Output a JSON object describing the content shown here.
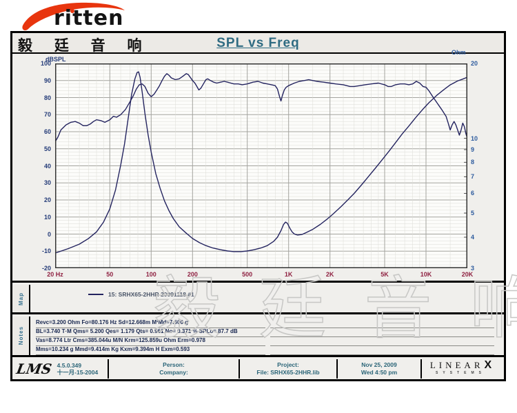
{
  "brand": {
    "logo_text": "ritten",
    "chinese_name": "毅 廷 音 响"
  },
  "title": "SPL vs Freq",
  "watermark": "毅 廷 音 响",
  "lms_plot_logo": "LMS",
  "colors": {
    "brand_red": "#e8350e",
    "title_color": "#2f6b82",
    "curve": "#23235f",
    "x_tick_color": "#8e2040",
    "yleft_color": "#243b78",
    "yright_color": "#2d5b9e",
    "footer_text": "#2b6578"
  },
  "chart_data": {
    "type": "line",
    "title": "SPL vs Freq",
    "grid": true,
    "x_axis": {
      "label": "Hz",
      "scale": "log",
      "min": 20,
      "max": 20000,
      "ticks": [
        {
          "f": 20,
          "label": "20  Hz"
        },
        {
          "f": 50,
          "label": "50"
        },
        {
          "f": 100,
          "label": "100"
        },
        {
          "f": 200,
          "label": "200"
        },
        {
          "f": 500,
          "label": "500"
        },
        {
          "f": 1000,
          "label": "1K"
        },
        {
          "f": 2000,
          "label": "2K"
        },
        {
          "f": 5000,
          "label": "5K"
        },
        {
          "f": 10000,
          "label": "10K"
        },
        {
          "f": 20000,
          "label": "20K"
        }
      ]
    },
    "y_left": {
      "label": "dBSPL",
      "min": -20,
      "max": 100,
      "major_step": 10,
      "minor_step": 2,
      "ticks": [
        100,
        90,
        80,
        70,
        60,
        50,
        40,
        30,
        20,
        10,
        0,
        -10,
        -20
      ]
    },
    "y_right": {
      "label": "Ohm",
      "scale": "log",
      "min": 3,
      "max": 20,
      "ticks": [
        20,
        10,
        9,
        8,
        7,
        6,
        5,
        4,
        3
      ]
    },
    "series": [
      {
        "name": "SPL (frequency response)",
        "axis": "left",
        "points": [
          [
            20,
            54
          ],
          [
            21,
            57
          ],
          [
            22,
            61
          ],
          [
            24,
            64
          ],
          [
            26,
            65.5
          ],
          [
            28,
            66
          ],
          [
            30,
            65
          ],
          [
            32,
            63.5
          ],
          [
            34,
            63.5
          ],
          [
            36,
            64.5
          ],
          [
            38,
            66
          ],
          [
            40,
            67
          ],
          [
            43,
            66.5
          ],
          [
            46,
            65.5
          ],
          [
            50,
            67
          ],
          [
            53,
            69
          ],
          [
            56,
            68.5
          ],
          [
            60,
            70
          ],
          [
            65,
            73
          ],
          [
            70,
            77.5
          ],
          [
            74,
            81
          ],
          [
            78,
            85
          ],
          [
            82,
            87.5
          ],
          [
            86,
            88
          ],
          [
            90,
            86.5
          ],
          [
            95,
            82.5
          ],
          [
            100,
            80.5
          ],
          [
            105,
            82
          ],
          [
            110,
            84.5
          ],
          [
            115,
            87
          ],
          [
            120,
            90
          ],
          [
            125,
            92.5
          ],
          [
            130,
            94
          ],
          [
            135,
            93
          ],
          [
            140,
            91.5
          ],
          [
            150,
            90.5
          ],
          [
            160,
            91
          ],
          [
            170,
            92.5
          ],
          [
            180,
            94
          ],
          [
            186,
            93.5
          ],
          [
            192,
            92
          ],
          [
            200,
            90
          ],
          [
            208,
            88.5
          ],
          [
            215,
            86.5
          ],
          [
            222,
            84.5
          ],
          [
            230,
            85.5
          ],
          [
            240,
            88
          ],
          [
            250,
            90.5
          ],
          [
            258,
            91
          ],
          [
            270,
            90
          ],
          [
            285,
            89
          ],
          [
            300,
            88.5
          ],
          [
            320,
            89
          ],
          [
            340,
            89.5
          ],
          [
            360,
            89
          ],
          [
            380,
            88.5
          ],
          [
            400,
            88
          ],
          [
            430,
            88
          ],
          [
            460,
            87.5
          ],
          [
            500,
            88
          ],
          [
            550,
            89
          ],
          [
            600,
            89.5
          ],
          [
            650,
            88.5
          ],
          [
            700,
            88
          ],
          [
            750,
            87.5
          ],
          [
            800,
            87
          ],
          [
            830,
            85
          ],
          [
            860,
            80.5
          ],
          [
            880,
            78
          ],
          [
            900,
            81
          ],
          [
            930,
            84.5
          ],
          [
            960,
            86
          ],
          [
            1000,
            87
          ],
          [
            1100,
            88.5
          ],
          [
            1200,
            89.5
          ],
          [
            1300,
            90
          ],
          [
            1400,
            90.5
          ],
          [
            1500,
            90
          ],
          [
            1600,
            89.5
          ],
          [
            1800,
            89
          ],
          [
            2000,
            88.5
          ],
          [
            2200,
            88
          ],
          [
            2500,
            87.5
          ],
          [
            2800,
            86.5
          ],
          [
            3000,
            86.5
          ],
          [
            3300,
            87
          ],
          [
            3600,
            87.5
          ],
          [
            4000,
            88
          ],
          [
            4500,
            88.5
          ],
          [
            5000,
            87.5
          ],
          [
            5300,
            86.5
          ],
          [
            5600,
            86.5
          ],
          [
            6000,
            87.5
          ],
          [
            6500,
            88
          ],
          [
            7000,
            88
          ],
          [
            7500,
            87.5
          ],
          [
            8000,
            88
          ],
          [
            8500,
            89.5
          ],
          [
            9000,
            88.5
          ],
          [
            9500,
            86.5
          ],
          [
            10000,
            86
          ],
          [
            10500,
            84
          ],
          [
            11000,
            81.5
          ],
          [
            12000,
            77
          ],
          [
            13000,
            73
          ],
          [
            14000,
            69
          ],
          [
            14500,
            65
          ],
          [
            15000,
            61
          ],
          [
            15500,
            64
          ],
          [
            16000,
            66
          ],
          [
            16500,
            64
          ],
          [
            17000,
            61
          ],
          [
            17500,
            58
          ],
          [
            18000,
            61
          ],
          [
            18500,
            65
          ],
          [
            19000,
            63
          ],
          [
            19500,
            59
          ],
          [
            20000,
            56
          ]
        ]
      },
      {
        "name": "Impedance",
        "axis": "right",
        "points": [
          [
            20,
            3.45
          ],
          [
            25,
            3.6
          ],
          [
            30,
            3.75
          ],
          [
            35,
            3.95
          ],
          [
            40,
            4.2
          ],
          [
            45,
            4.6
          ],
          [
            50,
            5.2
          ],
          [
            55,
            6.2
          ],
          [
            60,
            7.8
          ],
          [
            64,
            9.5
          ],
          [
            68,
            12
          ],
          [
            72,
            15
          ],
          [
            76,
            17.3
          ],
          [
            79,
            18.4
          ],
          [
            81,
            18.5
          ],
          [
            83,
            17.6
          ],
          [
            86,
            15.3
          ],
          [
            90,
            12.6
          ],
          [
            95,
            10.3
          ],
          [
            100,
            8.8
          ],
          [
            108,
            7.2
          ],
          [
            116,
            6.3
          ],
          [
            125,
            5.6
          ],
          [
            135,
            5.1
          ],
          [
            145,
            4.75
          ],
          [
            160,
            4.4
          ],
          [
            180,
            4.15
          ],
          [
            200,
            3.95
          ],
          [
            225,
            3.8
          ],
          [
            250,
            3.7
          ],
          [
            280,
            3.62
          ],
          [
            320,
            3.56
          ],
          [
            360,
            3.52
          ],
          [
            400,
            3.5
          ],
          [
            450,
            3.5
          ],
          [
            500,
            3.52
          ],
          [
            560,
            3.56
          ],
          [
            630,
            3.62
          ],
          [
            700,
            3.7
          ],
          [
            780,
            3.85
          ],
          [
            830,
            4.0
          ],
          [
            880,
            4.25
          ],
          [
            920,
            4.5
          ],
          [
            950,
            4.6
          ],
          [
            980,
            4.55
          ],
          [
            1020,
            4.35
          ],
          [
            1060,
            4.2
          ],
          [
            1100,
            4.12
          ],
          [
            1160,
            4.08
          ],
          [
            1250,
            4.1
          ],
          [
            1350,
            4.18
          ],
          [
            1500,
            4.3
          ],
          [
            1700,
            4.5
          ],
          [
            1900,
            4.72
          ],
          [
            2100,
            4.95
          ],
          [
            2400,
            5.3
          ],
          [
            2700,
            5.65
          ],
          [
            3000,
            6.0
          ],
          [
            3400,
            6.5
          ],
          [
            3800,
            7.0
          ],
          [
            4300,
            7.6
          ],
          [
            4800,
            8.2
          ],
          [
            5400,
            8.9
          ],
          [
            6000,
            9.6
          ],
          [
            6700,
            10.4
          ],
          [
            7500,
            11.2
          ],
          [
            8400,
            12.1
          ],
          [
            9400,
            13.0
          ],
          [
            10500,
            13.9
          ],
          [
            12000,
            14.9
          ],
          [
            13500,
            15.7
          ],
          [
            15000,
            16.4
          ],
          [
            17000,
            17.0
          ],
          [
            18500,
            17.3
          ],
          [
            20000,
            17.6
          ]
        ]
      }
    ],
    "legend_position": "map-panel-below-chart"
  },
  "map": {
    "tab_label": "Map",
    "legend": "15: SRHX65-2HHR  20091118  #1"
  },
  "notes": {
    "tab_label": "Notes",
    "lines": [
      "Revc=3.200 Ohm  Fo=80.176 Hz  Sd=12.668m M²Md=7.600 g",
      "BL=3.740 T·M  Qms= 5.200  Qes= 1.179  Qts= 0.961  No= 0.371 %  SPLo= 87.7 dB",
      "Vas=8.774 Ltr  Cms=385.044u M/N  Krm=125.859u Ohm  Erm=0.978",
      "Mms=10.234 g  Mmd=9.414m Kg  Kxm=9.394m H  Exm=0.593"
    ]
  },
  "footer": {
    "lms_logo": "LMS",
    "version": "4.5.0.349",
    "version_date": "十一月-15-2004",
    "person_label": "Person:",
    "company_label": "Company:",
    "project_label": "Project:",
    "file_label": "File: SRHX65-2HHR.lib",
    "date": "Nov 25, 2009",
    "time": "Wed  4:50 pm",
    "linearx": {
      "name": "LINEAR",
      "x": "X",
      "sub": "SYSTEMS"
    }
  }
}
